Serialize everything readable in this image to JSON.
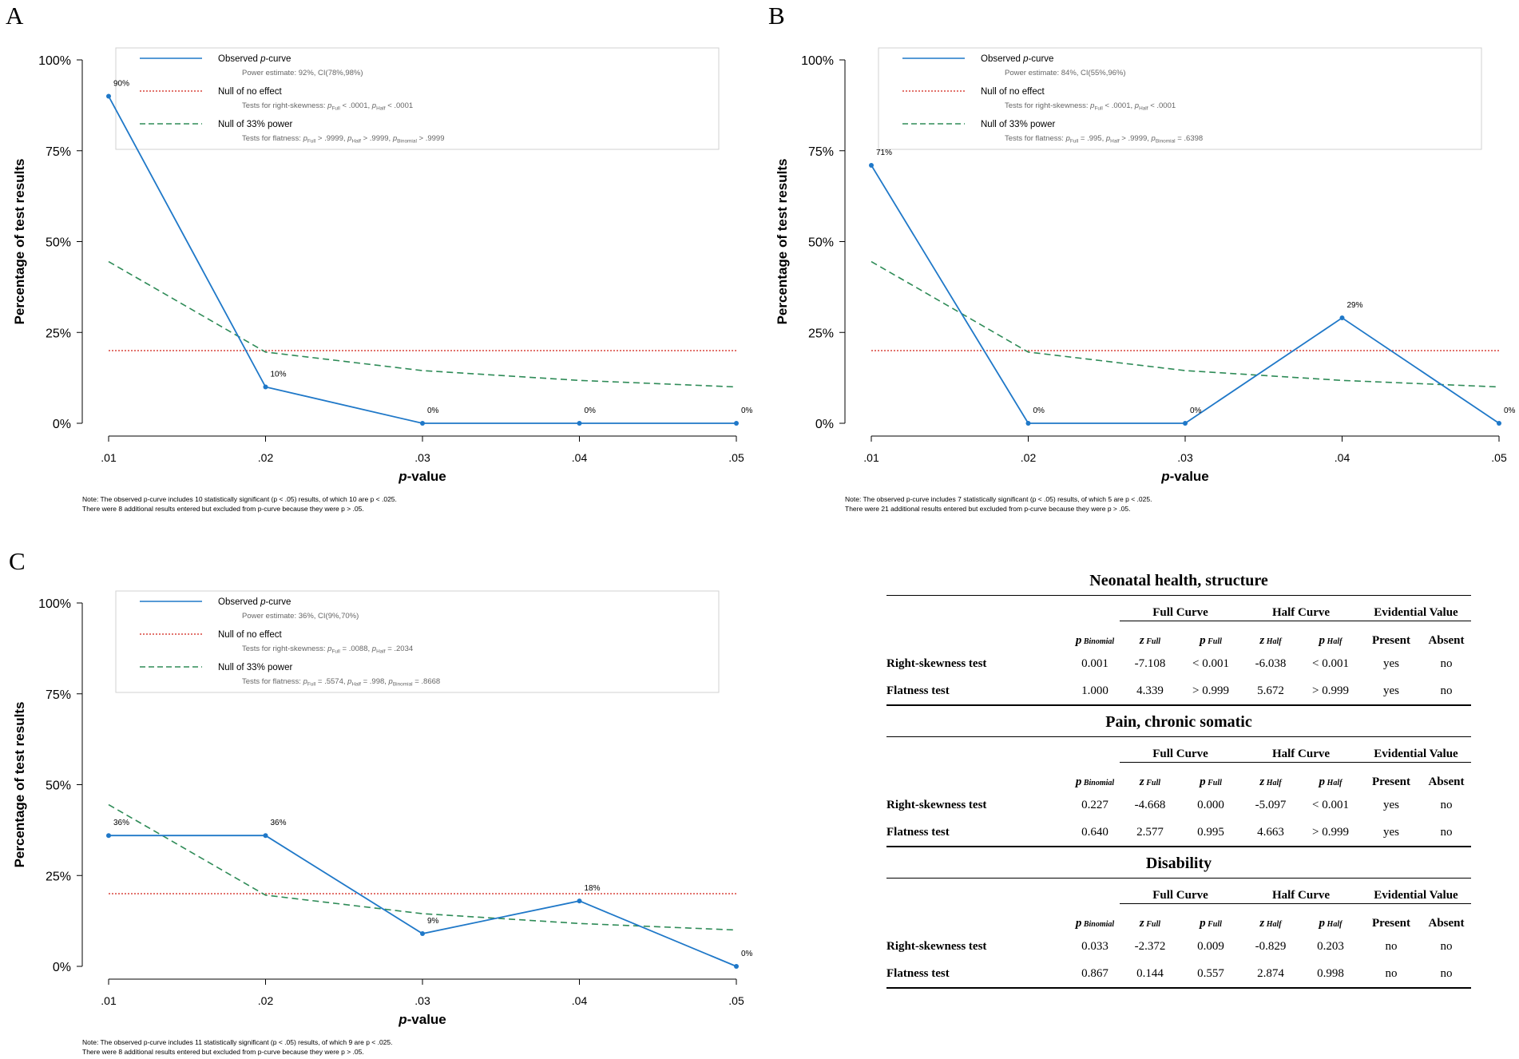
{
  "panels": [
    {
      "letter": "A",
      "legend": {
        "observed_label": "Observed p-curve",
        "observed_detail": "Power estimate: 92%, CI(78%,98%)",
        "null_label": "Null of no effect",
        "null_detail": "Tests for right-skewness: pFull < .0001, pHalf < .0001",
        "power_label": "Null of 33% power",
        "power_detail": "Tests for flatness: pFull > .9999, pHalf > .9999, pBinomial > .9999"
      },
      "note": [
        "Note: The observed p-curve includes 10 statistically significant (p < .05) results, of which 10 are p < .025.",
        "There were 8 additional results entered but excluded from p-curve because they were p > .05."
      ]
    },
    {
      "letter": "B",
      "legend": {
        "observed_label": "Observed p-curve",
        "observed_detail": "Power estimate: 84%, CI(55%,96%)",
        "null_label": "Null of no effect",
        "null_detail": "Tests for right-skewness: pFull < .0001, pHalf < .0001",
        "power_label": "Null of 33% power",
        "power_detail": "Tests for flatness: pFull = .995, pHalf > .9999, pBinomial = .6398"
      },
      "note": [
        "Note: The observed p-curve includes 7 statistically significant (p < .05) results, of which 5 are p < .025.",
        "There were 21 additional results entered but excluded from p-curve because they were p > .05."
      ]
    },
    {
      "letter": "C",
      "legend": {
        "observed_label": "Observed p-curve",
        "observed_detail": "Power estimate: 36%, CI(9%,70%)",
        "null_label": "Null of no effect",
        "null_detail": "Tests for right-skewness: pFull = .0088, pHalf = .2034",
        "power_label": "Null of 33% power",
        "power_detail": "Tests for flatness: pFull = .5574, pHalf = .998, pBinomial = .8668"
      },
      "note": [
        "Note: The observed p-curve includes 11 statistically significant (p < .05) results, of which 9 are p < .025.",
        "There were 8 additional results entered but excluded from p-curve because they were p > .05."
      ]
    }
  ],
  "chart_data": [
    {
      "type": "line",
      "panel": "A",
      "xlabel": "p-value",
      "ylabel": "Percentage of test results",
      "x": [
        ".01",
        ".02",
        ".03",
        ".04",
        ".05"
      ],
      "ylim": [
        0,
        100
      ],
      "yticks": [
        "0%",
        "25%",
        "50%",
        "75%",
        "100%"
      ],
      "series": [
        {
          "name": "Observed p-curve",
          "values": [
            90,
            10,
            0,
            0,
            0
          ],
          "labels": [
            "90%",
            "10%",
            "0%",
            "0%",
            "0%"
          ],
          "color": "#1f78c8"
        },
        {
          "name": "Null of no effect",
          "values": [
            20,
            20,
            20,
            20,
            20
          ],
          "color": "#d9453d"
        },
        {
          "name": "Null of 33% power",
          "values": [
            44.5,
            19.6,
            14.5,
            11.8,
            10.0
          ],
          "color": "#2e8b57"
        }
      ]
    },
    {
      "type": "line",
      "panel": "B",
      "xlabel": "p-value",
      "ylabel": "Percentage of test results",
      "x": [
        ".01",
        ".02",
        ".03",
        ".04",
        ".05"
      ],
      "ylim": [
        0,
        100
      ],
      "yticks": [
        "0%",
        "25%",
        "50%",
        "75%",
        "100%"
      ],
      "series": [
        {
          "name": "Observed p-curve",
          "values": [
            71,
            0,
            0,
            29,
            0
          ],
          "labels": [
            "71%",
            "0%",
            "0%",
            "29%",
            "0%"
          ],
          "color": "#1f78c8"
        },
        {
          "name": "Null of no effect",
          "values": [
            20,
            20,
            20,
            20,
            20
          ],
          "color": "#d9453d"
        },
        {
          "name": "Null of 33% power",
          "values": [
            44.5,
            19.6,
            14.5,
            11.8,
            10.0
          ],
          "color": "#2e8b57"
        }
      ]
    },
    {
      "type": "line",
      "panel": "C",
      "xlabel": "p-value",
      "ylabel": "Percentage of test results",
      "x": [
        ".01",
        ".02",
        ".03",
        ".04",
        ".05"
      ],
      "ylim": [
        0,
        100
      ],
      "yticks": [
        "0%",
        "25%",
        "50%",
        "75%",
        "100%"
      ],
      "series": [
        {
          "name": "Observed p-curve",
          "values": [
            36,
            36,
            9,
            18,
            0
          ],
          "labels": [
            "36%",
            "36%",
            "9%",
            "18%",
            "0%"
          ],
          "color": "#1f78c8"
        },
        {
          "name": "Null of no effect",
          "values": [
            20,
            20,
            20,
            20,
            20
          ],
          "color": "#d9453d"
        },
        {
          "name": "Null of 33% power",
          "values": [
            44.5,
            19.6,
            14.5,
            11.8,
            10.0
          ],
          "color": "#2e8b57"
        }
      ]
    },
    {
      "type": "table",
      "group_headers": [
        "Full Curve",
        "Half Curve",
        "Evidential Value"
      ],
      "columns": [
        "",
        "p Binomial",
        "z Full",
        "p Full",
        "z Half",
        "p Half",
        "Present",
        "Absent"
      ],
      "sections": [
        {
          "title": "Neonatal health, structure",
          "rows": [
            {
              "label": "Right-skewness test",
              "cells": [
                "0.001",
                "-7.108",
                "< 0.001",
                "-6.038",
                "< 0.001",
                "yes",
                "no"
              ]
            },
            {
              "label": "Flatness test",
              "cells": [
                "1.000",
                "4.339",
                "> 0.999",
                "5.672",
                "> 0.999",
                "yes",
                "no"
              ]
            }
          ]
        },
        {
          "title": "Pain, chronic somatic",
          "rows": [
            {
              "label": "Right-skewness test",
              "cells": [
                "0.227",
                "-4.668",
                "0.000",
                "-5.097",
                "< 0.001",
                "yes",
                "no"
              ]
            },
            {
              "label": "Flatness test",
              "cells": [
                "0.640",
                "2.577",
                "0.995",
                "4.663",
                "> 0.999",
                "yes",
                "no"
              ]
            }
          ]
        },
        {
          "title": "Disability",
          "rows": [
            {
              "label": "Right-skewness test",
              "cells": [
                "0.033",
                "-2.372",
                "0.009",
                "-0.829",
                "0.203",
                "no",
                "no"
              ]
            },
            {
              "label": "Flatness test",
              "cells": [
                "0.867",
                "0.144",
                "0.557",
                "2.874",
                "0.998",
                "no",
                "no"
              ]
            }
          ]
        }
      ]
    }
  ]
}
